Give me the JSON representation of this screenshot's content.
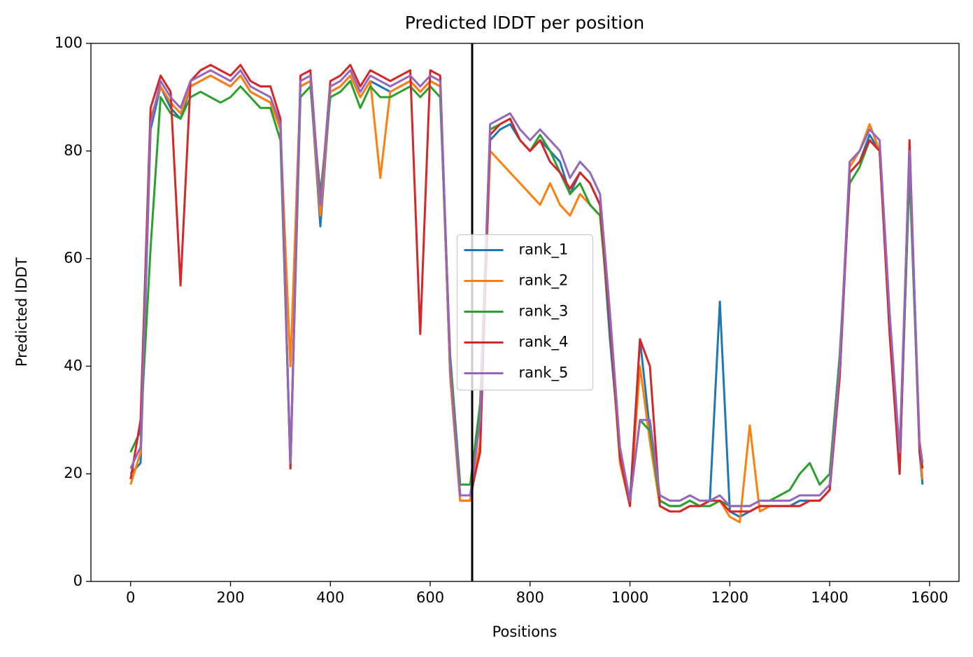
{
  "chart_data": {
    "type": "line",
    "title": "Predicted lDDT per position",
    "x_label": "Positions",
    "y_label": "Predicted lDDT",
    "x": [
      0,
      20,
      40,
      60,
      80,
      100,
      120,
      140,
      160,
      180,
      200,
      220,
      240,
      260,
      280,
      300,
      320,
      340,
      360,
      380,
      400,
      420,
      440,
      460,
      480,
      500,
      520,
      540,
      560,
      580,
      600,
      620,
      640,
      660,
      680,
      700,
      720,
      740,
      760,
      780,
      800,
      820,
      840,
      860,
      880,
      900,
      920,
      940,
      960,
      980,
      1000,
      1020,
      1040,
      1060,
      1080,
      1100,
      1120,
      1140,
      1160,
      1180,
      1200,
      1220,
      1240,
      1260,
      1280,
      1300,
      1320,
      1340,
      1360,
      1380,
      1400,
      1420,
      1440,
      1460,
      1480,
      1500,
      1520,
      1540,
      1560,
      1580,
      1586
    ],
    "series": [
      {
        "name": "rank_1",
        "color": "#1f77b4",
        "values": [
          20,
          22,
          84,
          92,
          88,
          86,
          92,
          93,
          94,
          93,
          92,
          94,
          91,
          90,
          89,
          84,
          21,
          92,
          93,
          66,
          91,
          92,
          94,
          90,
          93,
          92,
          91,
          92,
          93,
          91,
          93,
          92,
          38,
          15,
          15,
          25,
          82,
          84,
          85,
          82,
          80,
          82,
          80,
          78,
          72,
          76,
          74,
          70,
          45,
          24,
          15,
          45,
          28,
          15,
          14,
          14,
          15,
          14,
          15,
          52,
          13,
          12,
          13,
          14,
          14,
          14,
          14,
          15,
          15,
          15,
          17,
          38,
          76,
          78,
          83,
          80,
          48,
          20,
          78,
          24,
          18
        ]
      },
      {
        "name": "rank_2",
        "color": "#ff7f0e",
        "values": [
          18,
          24,
          86,
          92,
          89,
          87,
          92,
          93,
          94,
          93,
          92,
          94,
          91,
          90,
          89,
          84,
          40,
          92,
          93,
          68,
          91,
          92,
          94,
          90,
          93,
          75,
          91,
          92,
          93,
          91,
          93,
          92,
          38,
          15,
          15,
          26,
          80,
          78,
          76,
          74,
          72,
          70,
          74,
          70,
          68,
          72,
          70,
          68,
          48,
          22,
          14,
          40,
          26,
          14,
          13,
          13,
          14,
          14,
          14,
          15,
          12,
          11,
          29,
          13,
          14,
          14,
          14,
          14,
          15,
          15,
          17,
          38,
          77,
          80,
          85,
          80,
          48,
          22,
          80,
          25,
          19
        ]
      },
      {
        "name": "rank_3",
        "color": "#2ca02c",
        "values": [
          24,
          28,
          62,
          90,
          87,
          86,
          90,
          91,
          90,
          89,
          90,
          92,
          90,
          88,
          88,
          82,
          22,
          90,
          92,
          72,
          90,
          91,
          93,
          88,
          92,
          90,
          90,
          91,
          92,
          90,
          92,
          90,
          42,
          18,
          18,
          33,
          84,
          85,
          86,
          82,
          80,
          83,
          80,
          76,
          72,
          74,
          70,
          68,
          48,
          23,
          15,
          30,
          28,
          15,
          14,
          14,
          15,
          14,
          14,
          15,
          14,
          14,
          14,
          15,
          15,
          16,
          17,
          20,
          22,
          18,
          20,
          42,
          74,
          77,
          82,
          80,
          48,
          22,
          76,
          25,
          21
        ]
      },
      {
        "name": "rank_4",
        "color": "#d62728",
        "values": [
          19,
          30,
          88,
          94,
          91,
          55,
          93,
          95,
          96,
          95,
          94,
          96,
          93,
          92,
          92,
          86,
          21,
          94,
          95,
          70,
          93,
          94,
          96,
          92,
          95,
          94,
          93,
          94,
          95,
          46,
          95,
          94,
          40,
          16,
          16,
          24,
          83,
          85,
          86,
          82,
          80,
          82,
          78,
          76,
          73,
          76,
          74,
          70,
          48,
          23,
          14,
          45,
          40,
          14,
          13,
          13,
          14,
          14,
          15,
          15,
          13,
          13,
          13,
          14,
          14,
          14,
          14,
          14,
          15,
          15,
          17,
          38,
          76,
          78,
          82,
          80,
          46,
          20,
          82,
          24,
          21
        ]
      },
      {
        "name": "rank_5",
        "color": "#9467bd",
        "values": [
          21,
          25,
          85,
          93,
          90,
          88,
          93,
          94,
          95,
          94,
          93,
          95,
          92,
          91,
          90,
          85,
          22,
          93,
          94,
          70,
          92,
          93,
          95,
          91,
          94,
          93,
          92,
          93,
          94,
          92,
          94,
          93,
          40,
          16,
          16,
          30,
          85,
          86,
          87,
          84,
          82,
          84,
          82,
          80,
          75,
          78,
          76,
          72,
          50,
          25,
          15,
          30,
          30,
          16,
          15,
          15,
          16,
          15,
          15,
          16,
          14,
          14,
          14,
          15,
          15,
          15,
          15,
          16,
          16,
          16,
          18,
          40,
          78,
          80,
          84,
          82,
          50,
          24,
          80,
          26,
          22
        ]
      }
    ],
    "vline": 684,
    "xlim": [
      -79.5,
      1659
    ],
    "ylim": [
      0,
      100
    ],
    "xticks": [
      0,
      200,
      400,
      600,
      800,
      1000,
      1200,
      1400,
      1600
    ],
    "yticks": [
      0,
      20,
      40,
      60,
      80,
      100
    ],
    "legend": "center",
    "grid": false
  }
}
